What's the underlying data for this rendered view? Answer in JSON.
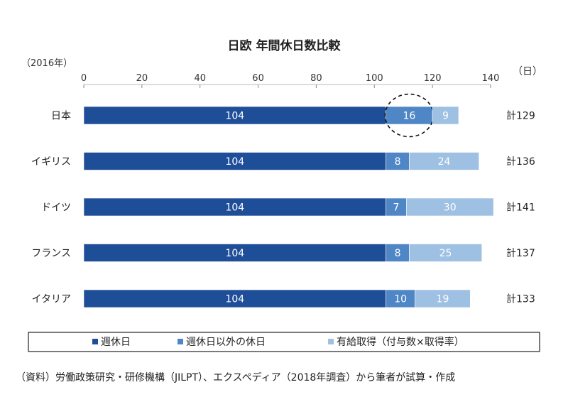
{
  "chart_data": {
    "type": "bar",
    "orientation": "horizontal",
    "stacked": true,
    "title": "日欧 年間休日数比較",
    "year_label": "（2016年）",
    "unit_label": "（日）",
    "xlim": [
      0,
      140
    ],
    "x_ticks": [
      0,
      20,
      40,
      60,
      80,
      100,
      120,
      140
    ],
    "categories": [
      "日本",
      "イギリス",
      "ドイツ",
      "フランス",
      "イタリア"
    ],
    "series": [
      {
        "name": "週休日",
        "color": "#1f4e99",
        "values": [
          104,
          104,
          104,
          104,
          104
        ]
      },
      {
        "name": "週休日以外の休日",
        "color": "#4f86c6",
        "values": [
          16,
          8,
          7,
          8,
          10
        ]
      },
      {
        "name": "有給取得（付与数×取得率）",
        "color": "#9ec0e2",
        "values": [
          9,
          24,
          30,
          25,
          19
        ]
      }
    ],
    "totals": [
      "計129",
      "計136",
      "計141",
      "計137",
      "計133"
    ],
    "highlight": {
      "category": "日本",
      "series": "週休日以外の休日"
    },
    "legend_position": "bottom",
    "grid": false
  },
  "footer": {
    "source": "（資料）労働政策研究・研修機構（JILPT）、エクスペディア（2018年調査）から筆者が試算・作成"
  }
}
